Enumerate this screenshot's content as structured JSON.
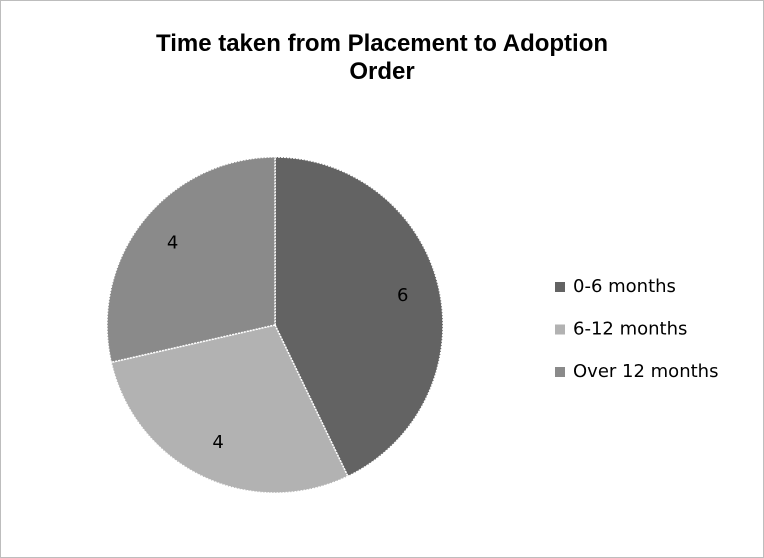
{
  "chart_data": {
    "type": "pie",
    "title": "Time taken from Placement to Adoption Order",
    "categories": [
      "0-6 months",
      "6-12 months",
      "Over 12 months"
    ],
    "values": [
      6,
      4,
      4
    ],
    "colors": [
      "#636363",
      "#b2b2b2",
      "#8a8a8a"
    ],
    "legend": "right"
  }
}
